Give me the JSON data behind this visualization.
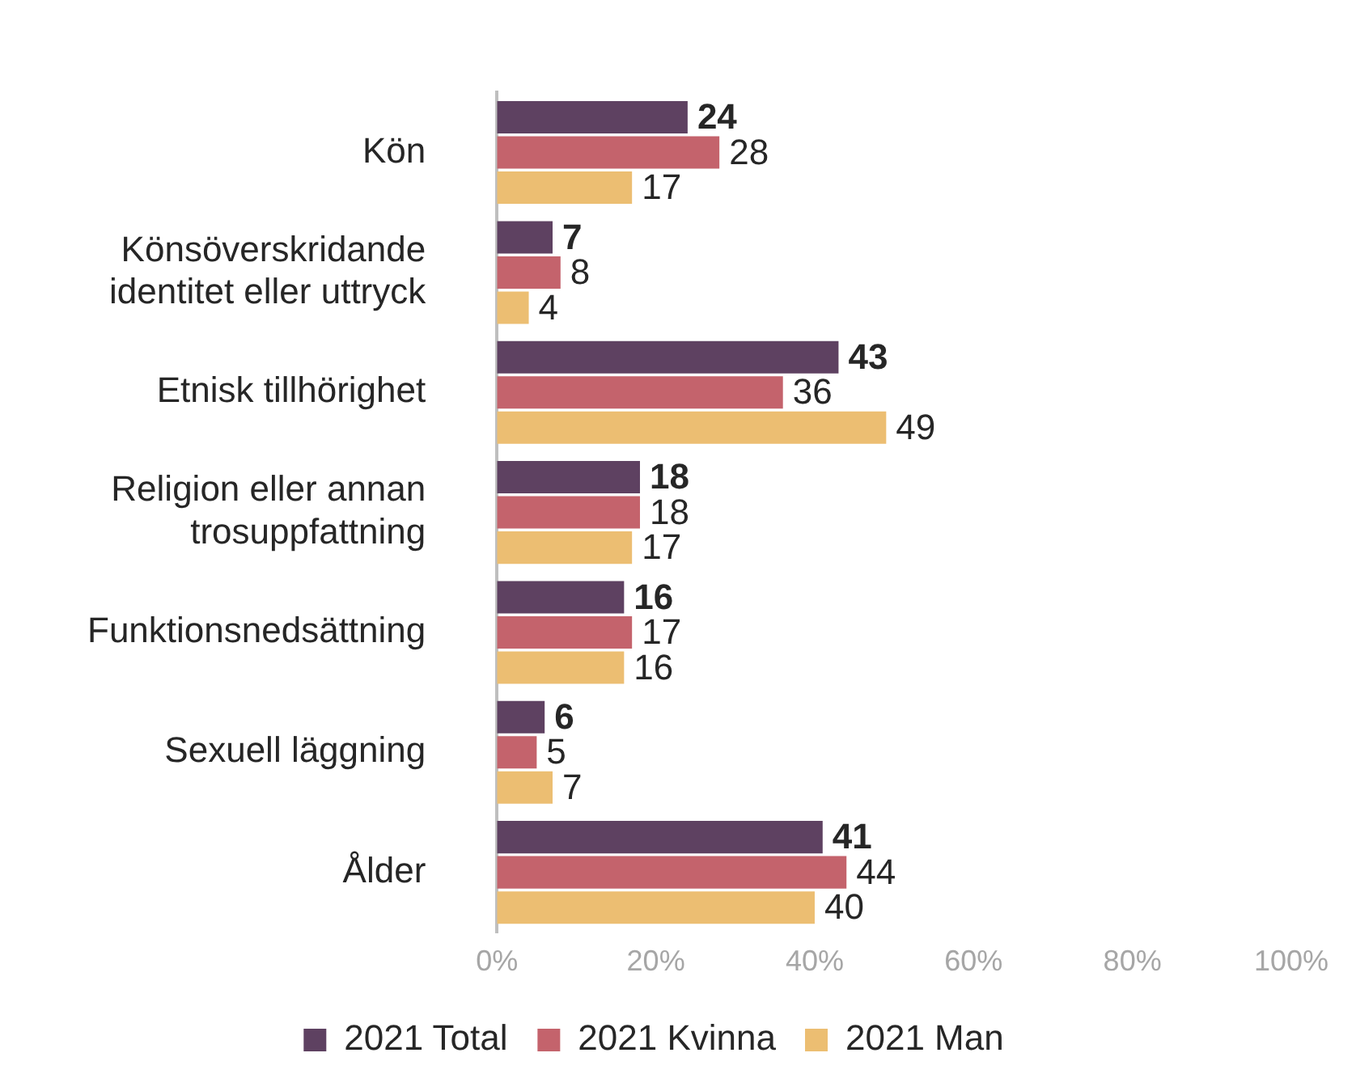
{
  "chart_data": {
    "type": "bar",
    "orientation": "horizontal",
    "categories": [
      "Kön",
      "Könsöverskridande identitet eller uttryck",
      "Etnisk tillhörighet",
      "Religion eller annan trosuppfattning",
      "Funktionsnedsättning",
      "Sexuell läggning",
      "Ålder"
    ],
    "series": [
      {
        "name": "2021 Total",
        "color": "#5e4161",
        "values": [
          24,
          7,
          43,
          18,
          16,
          6,
          41
        ]
      },
      {
        "name": "2021 Kvinna",
        "color": "#c4636c",
        "values": [
          28,
          8,
          36,
          18,
          17,
          5,
          44
        ]
      },
      {
        "name": "2021 Man",
        "color": "#ecbe72",
        "values": [
          17,
          4,
          49,
          17,
          16,
          7,
          40
        ]
      }
    ],
    "xlim": [
      0,
      100
    ],
    "xticks": [
      {
        "value": 0,
        "label": "0%"
      },
      {
        "value": 20,
        "label": "20%"
      },
      {
        "value": 40,
        "label": "40%"
      },
      {
        "value": 60,
        "label": "60%"
      },
      {
        "value": 80,
        "label": "80%"
      },
      {
        "value": 100,
        "label": "100%"
      }
    ],
    "data_labels": true,
    "grid": false,
    "legend": "bottom"
  }
}
